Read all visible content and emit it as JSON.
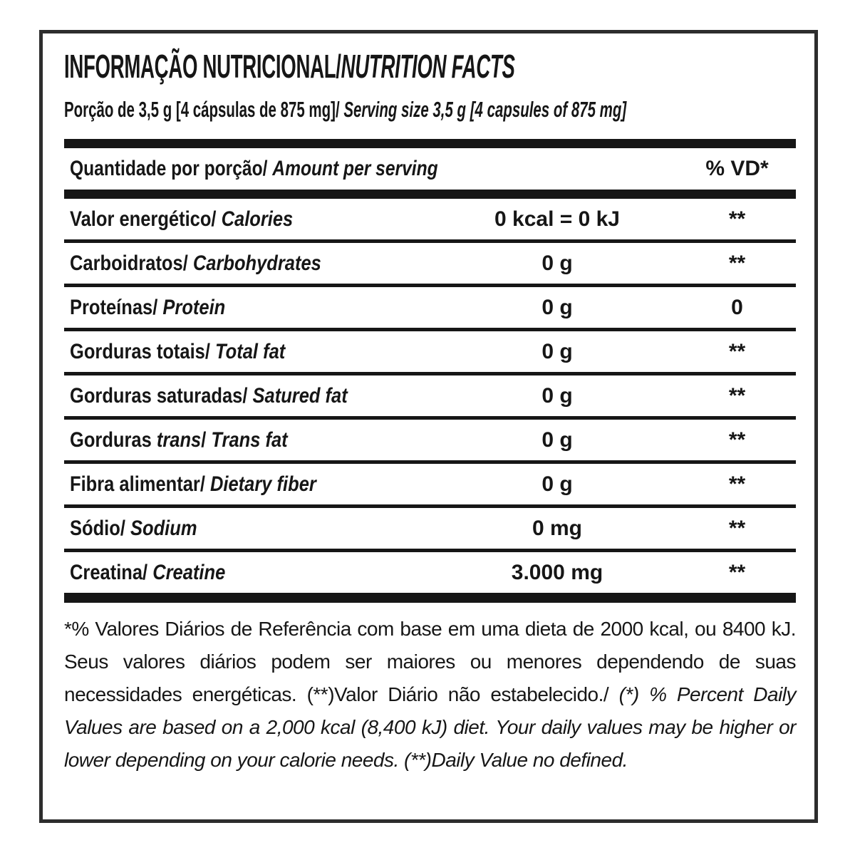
{
  "colors": {
    "ink": "#161616",
    "outer_border": "#2d2d2d",
    "background": "#ffffff"
  },
  "label": {
    "title": {
      "pt": "INFORMAÇÃO NUTRICIONAL/",
      "en": "NUTRITION FACTS"
    },
    "serving": {
      "pt": "Porção de 3,5 g [4 cápsulas de 875 mg]/",
      "en": "Serving size 3,5 g [4 capsules of 875 mg]"
    },
    "table": {
      "header": {
        "pt": "Quantidade por porção/",
        "en": "Amount per serving",
        "dv": "% VD*"
      },
      "name_separator": "/",
      "rows": [
        {
          "pt": "Valor energético",
          "pt_italic": "",
          "en": "Calories",
          "amount": "0 kcal = 0 kJ",
          "dv": "**"
        },
        {
          "pt": "Carboidratos",
          "pt_italic": "",
          "en": "Carbohydrates",
          "amount": "0 g",
          "dv": "**"
        },
        {
          "pt": "Proteínas",
          "pt_italic": "",
          "en": "Protein",
          "amount": "0 g",
          "dv": "0"
        },
        {
          "pt": "Gorduras totais",
          "pt_italic": "",
          "en": "Total fat",
          "amount": "0 g",
          "dv": "**"
        },
        {
          "pt": "Gorduras saturadas",
          "pt_italic": "",
          "en": "Satured fat",
          "amount": "0 g",
          "dv": "**"
        },
        {
          "pt": "Gorduras",
          "pt_italic": "trans",
          "en": "Trans fat",
          "amount": "0 g",
          "dv": "**"
        },
        {
          "pt": "Fibra alimentar",
          "pt_italic": "",
          "en": "Dietary fiber",
          "amount": "0 g",
          "dv": "**"
        },
        {
          "pt": "Sódio",
          "pt_italic": "",
          "en": "Sodium",
          "amount": "0 mg",
          "dv": "**"
        },
        {
          "pt": "Creatina",
          "pt_italic": "",
          "en": "Creatine",
          "amount": "3.000 mg",
          "dv": "**"
        }
      ]
    },
    "footnote": {
      "pt": "*% Valores Diários de Referência com base em uma dieta de 2000 kcal, ou 8400 kJ. Seus valores diários podem ser maiores ou menores dependendo de suas necessidades energéticas. (**)Valor Diário não estabelecido./",
      "en": "(*) % Percent Daily Values are based on a 2,000 kcal (8,400 kJ) diet. Your daily values may be higher or lower depending on your calorie needs. (**)Daily Value no defined."
    }
  }
}
